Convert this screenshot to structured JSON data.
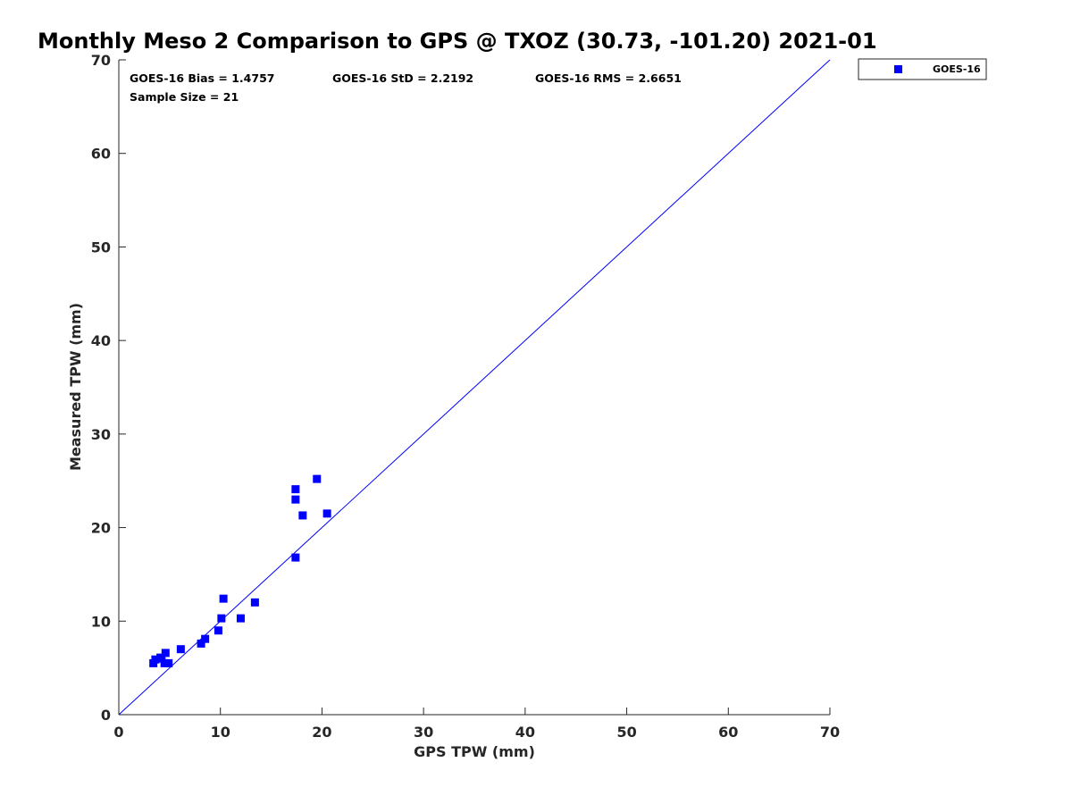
{
  "chart_data": {
    "type": "scatter",
    "title": "Monthly Meso 2 Comparison to GPS @ TXOZ (30.73, -101.20) 2021-01",
    "xlabel": "GPS TPW (mm)",
    "ylabel": "Measured TPW (mm)",
    "xlim": [
      0,
      70
    ],
    "ylim": [
      0,
      70
    ],
    "xticks": [
      "0",
      "10",
      "20",
      "30",
      "40",
      "50",
      "60",
      "70"
    ],
    "yticks": [
      "0",
      "10",
      "20",
      "30",
      "40",
      "50",
      "60",
      "70"
    ],
    "grid": false,
    "legend_position": "outside-top-right",
    "reference_line": {
      "x": [
        0,
        70
      ],
      "y": [
        0,
        70
      ],
      "color": "#0000ff"
    },
    "stats": {
      "bias": "GOES-16 Bias = 1.4757",
      "std": "GOES-16 StD = 2.2192",
      "rms": "GOES-16 RMS = 2.6651",
      "sample": "Sample Size = 21"
    },
    "series": [
      {
        "name": "GOES-16",
        "color": "#0000ff",
        "marker": "square",
        "points": [
          [
            3.4,
            5.5
          ],
          [
            3.6,
            5.9
          ],
          [
            4.1,
            6.1
          ],
          [
            4.5,
            5.5
          ],
          [
            4.6,
            6.6
          ],
          [
            4.9,
            5.5
          ],
          [
            6.1,
            7.0
          ],
          [
            8.1,
            7.6
          ],
          [
            8.5,
            8.1
          ],
          [
            9.8,
            9.0
          ],
          [
            10.1,
            10.3
          ],
          [
            10.3,
            12.4
          ],
          [
            12.0,
            10.3
          ],
          [
            13.4,
            12.0
          ],
          [
            17.4,
            16.8
          ],
          [
            17.4,
            23.0
          ],
          [
            17.4,
            24.1
          ],
          [
            18.1,
            21.3
          ],
          [
            19.5,
            25.2
          ],
          [
            20.5,
            21.5
          ],
          [
            4.2,
            6.0
          ]
        ]
      }
    ]
  }
}
